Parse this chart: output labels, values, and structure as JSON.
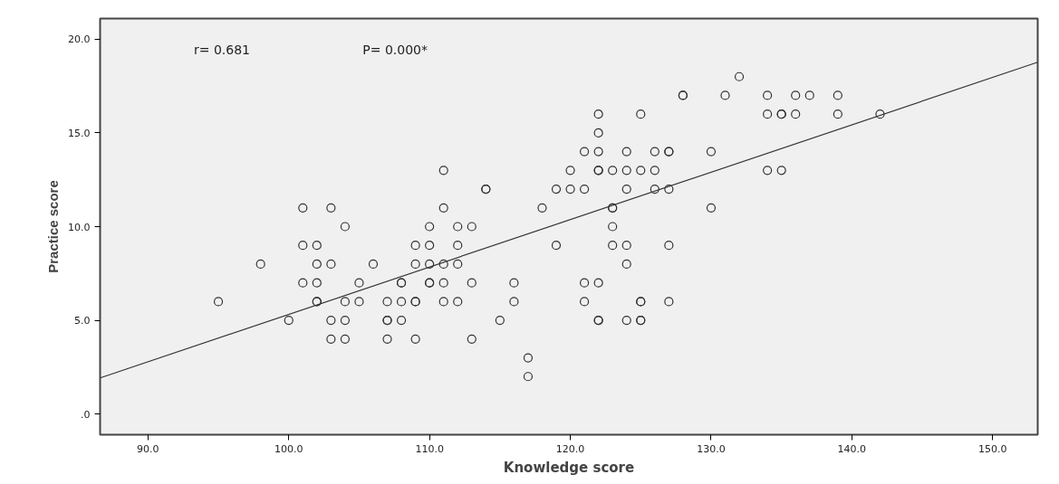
{
  "chart_data": {
    "type": "scatter",
    "xlabel": "Knowledge score",
    "ylabel": "Practice score",
    "annotations": [
      "r= 0.681",
      "P= 0.000*"
    ],
    "xlim": [
      86.6,
      153.2
    ],
    "ylim": [
      -1.1,
      21.1
    ],
    "xticks": [
      {
        "value": 90,
        "label": "90.0"
      },
      {
        "value": 100,
        "label": "100.0"
      },
      {
        "value": 110,
        "label": "110.0"
      },
      {
        "value": 120,
        "label": "120.0"
      },
      {
        "value": 130,
        "label": "130.0"
      },
      {
        "value": 140,
        "label": "140.0"
      },
      {
        "value": 150,
        "label": "150.0"
      }
    ],
    "yticks": [
      {
        "value": 0,
        "label": ".0"
      },
      {
        "value": 5,
        "label": "5.0"
      },
      {
        "value": 10,
        "label": "10.0"
      },
      {
        "value": 15,
        "label": "15.0"
      },
      {
        "value": 20,
        "label": "20.0"
      }
    ],
    "grid": false,
    "series": [
      {
        "marker": "circle",
        "color": "#333333",
        "x": [
          132,
          128,
          128,
          131,
          134,
          136,
          137,
          139,
          122,
          125,
          134,
          135,
          135,
          136,
          139,
          142,
          122,
          121,
          122,
          124,
          126,
          127,
          127,
          130,
          111,
          120,
          122,
          122,
          123,
          124,
          125,
          126,
          134,
          135,
          114,
          114,
          119,
          120,
          121,
          124,
          126,
          127,
          101,
          103,
          111,
          118,
          123,
          123,
          130,
          104,
          110,
          112,
          113,
          123,
          101,
          102,
          109,
          110,
          112,
          119,
          123,
          124,
          127,
          98,
          102,
          103,
          106,
          109,
          110,
          111,
          112,
          124,
          101,
          102,
          105,
          108,
          108,
          110,
          110,
          111,
          113,
          116,
          121,
          122,
          95,
          102,
          102,
          104,
          105,
          107,
          108,
          109,
          109,
          111,
          112,
          116,
          121,
          125,
          125,
          127,
          100,
          103,
          104,
          107,
          107,
          108,
          115,
          122,
          122,
          124,
          125,
          125,
          103,
          104,
          107,
          109,
          113,
          117,
          117
        ],
        "values": [
          18,
          17,
          17,
          17,
          17,
          17,
          17,
          17,
          16,
          16,
          16,
          16,
          16,
          16,
          16,
          16,
          15,
          14,
          14,
          14,
          14,
          14,
          14,
          14,
          13,
          13,
          13,
          13,
          13,
          13,
          13,
          13,
          13,
          13,
          12,
          12,
          12,
          12,
          12,
          12,
          12,
          12,
          11,
          11,
          11,
          11,
          11,
          11,
          11,
          10,
          10,
          10,
          10,
          10,
          9,
          9,
          9,
          9,
          9,
          9,
          9,
          9,
          9,
          8,
          8,
          8,
          8,
          8,
          8,
          8,
          8,
          8,
          7,
          7,
          7,
          7,
          7,
          7,
          7,
          7,
          7,
          7,
          7,
          7,
          6,
          6,
          6,
          6,
          6,
          6,
          6,
          6,
          6,
          6,
          6,
          6,
          6,
          6,
          6,
          6,
          5,
          5,
          5,
          5,
          5,
          5,
          5,
          5,
          5,
          5,
          5,
          5,
          4,
          4,
          4,
          4,
          4,
          3,
          2
        ]
      },
      {
        "type": "line",
        "color": "#333333",
        "x": [
          86.6,
          153.2
        ],
        "values": [
          1.93,
          18.77
        ]
      }
    ]
  }
}
